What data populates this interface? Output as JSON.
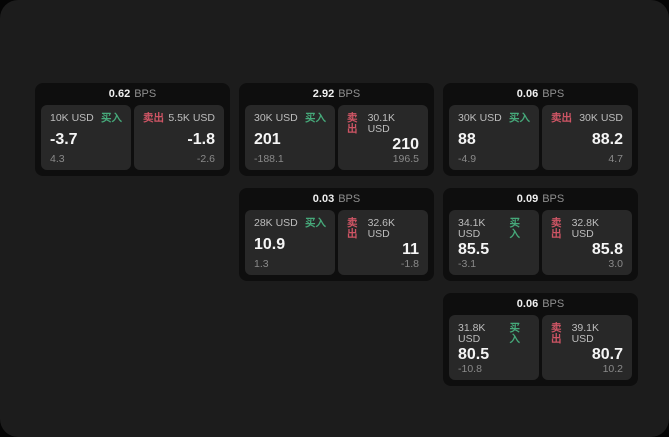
{
  "labels": {
    "bps_unit": "BPS",
    "buy": "买入",
    "sell": "卖出"
  },
  "colors": {
    "buy": "#46a97a",
    "sell": "#cf5565",
    "panel_bg": "#1c1c1c",
    "card_bg": "#0e0e0e",
    "subcard_bg": "#282828"
  },
  "cards": [
    {
      "row": 1,
      "col": 1,
      "bps": "0.62",
      "buy": {
        "size": "10K USD",
        "value": "-3.7",
        "delta": "4.3"
      },
      "sell": {
        "size": "5.5K USD",
        "value": "-1.8",
        "delta": "-2.6"
      }
    },
    {
      "row": 1,
      "col": 2,
      "bps": "2.92",
      "buy": {
        "size": "30K USD",
        "value": "201",
        "delta": "-188.1"
      },
      "sell": {
        "size": "30.1K USD",
        "value": "210",
        "delta": "196.5"
      }
    },
    {
      "row": 1,
      "col": 3,
      "bps": "0.06",
      "buy": {
        "size": "30K USD",
        "value": "88",
        "delta": "-4.9"
      },
      "sell": {
        "size": "30K USD",
        "value": "88.2",
        "delta": "4.7"
      }
    },
    {
      "row": 2,
      "col": 2,
      "bps": "0.03",
      "buy": {
        "size": "28K USD",
        "value": "10.9",
        "delta": "1.3"
      },
      "sell": {
        "size": "32.6K USD",
        "value": "11",
        "delta": "-1.8"
      }
    },
    {
      "row": 2,
      "col": 3,
      "bps": "0.09",
      "buy": {
        "size": "34.1K USD",
        "value": "85.5",
        "delta": "-3.1"
      },
      "sell": {
        "size": "32.8K USD",
        "value": "85.8",
        "delta": "3.0"
      }
    },
    {
      "row": 3,
      "col": 3,
      "bps": "0.06",
      "buy": {
        "size": "31.8K USD",
        "value": "80.5",
        "delta": "-10.8"
      },
      "sell": {
        "size": "39.1K USD",
        "value": "80.7",
        "delta": "10.2"
      }
    }
  ]
}
